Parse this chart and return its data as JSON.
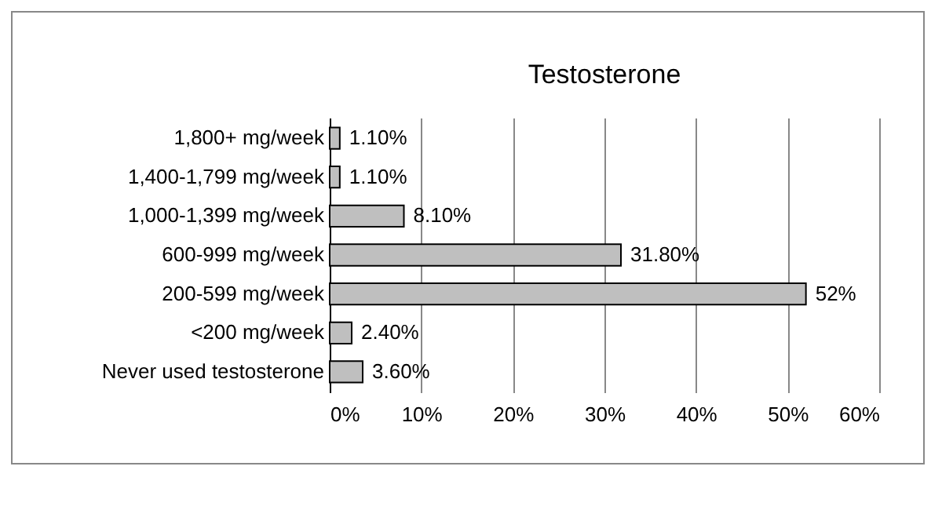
{
  "chart_data": {
    "type": "bar",
    "orientation": "horizontal",
    "title": "Testosterone",
    "categories": [
      "1,800+ mg/week",
      "1,400-1,799 mg/week",
      "1,000-1,399 mg/week",
      "600-999 mg/week",
      "200-599 mg/week",
      "<200 mg/week",
      "Never used testosterone"
    ],
    "values": [
      1.1,
      1.1,
      8.1,
      31.8,
      52,
      2.4,
      3.6
    ],
    "value_labels": [
      "1.10%",
      "1.10%",
      "8.10%",
      "31.80%",
      "52%",
      "2.40%",
      "3.60%"
    ],
    "color": "#bfbfbf",
    "xlim": [
      0,
      60
    ],
    "xticks": [
      {
        "value": 0,
        "label": "0%"
      },
      {
        "value": 10,
        "label": "10%"
      },
      {
        "value": 20,
        "label": "20%"
      },
      {
        "value": 30,
        "label": "30%"
      },
      {
        "value": 40,
        "label": "40%"
      },
      {
        "value": 50,
        "label": "50%"
      },
      {
        "value": 60,
        "label": "60%"
      }
    ],
    "grid": "x"
  }
}
